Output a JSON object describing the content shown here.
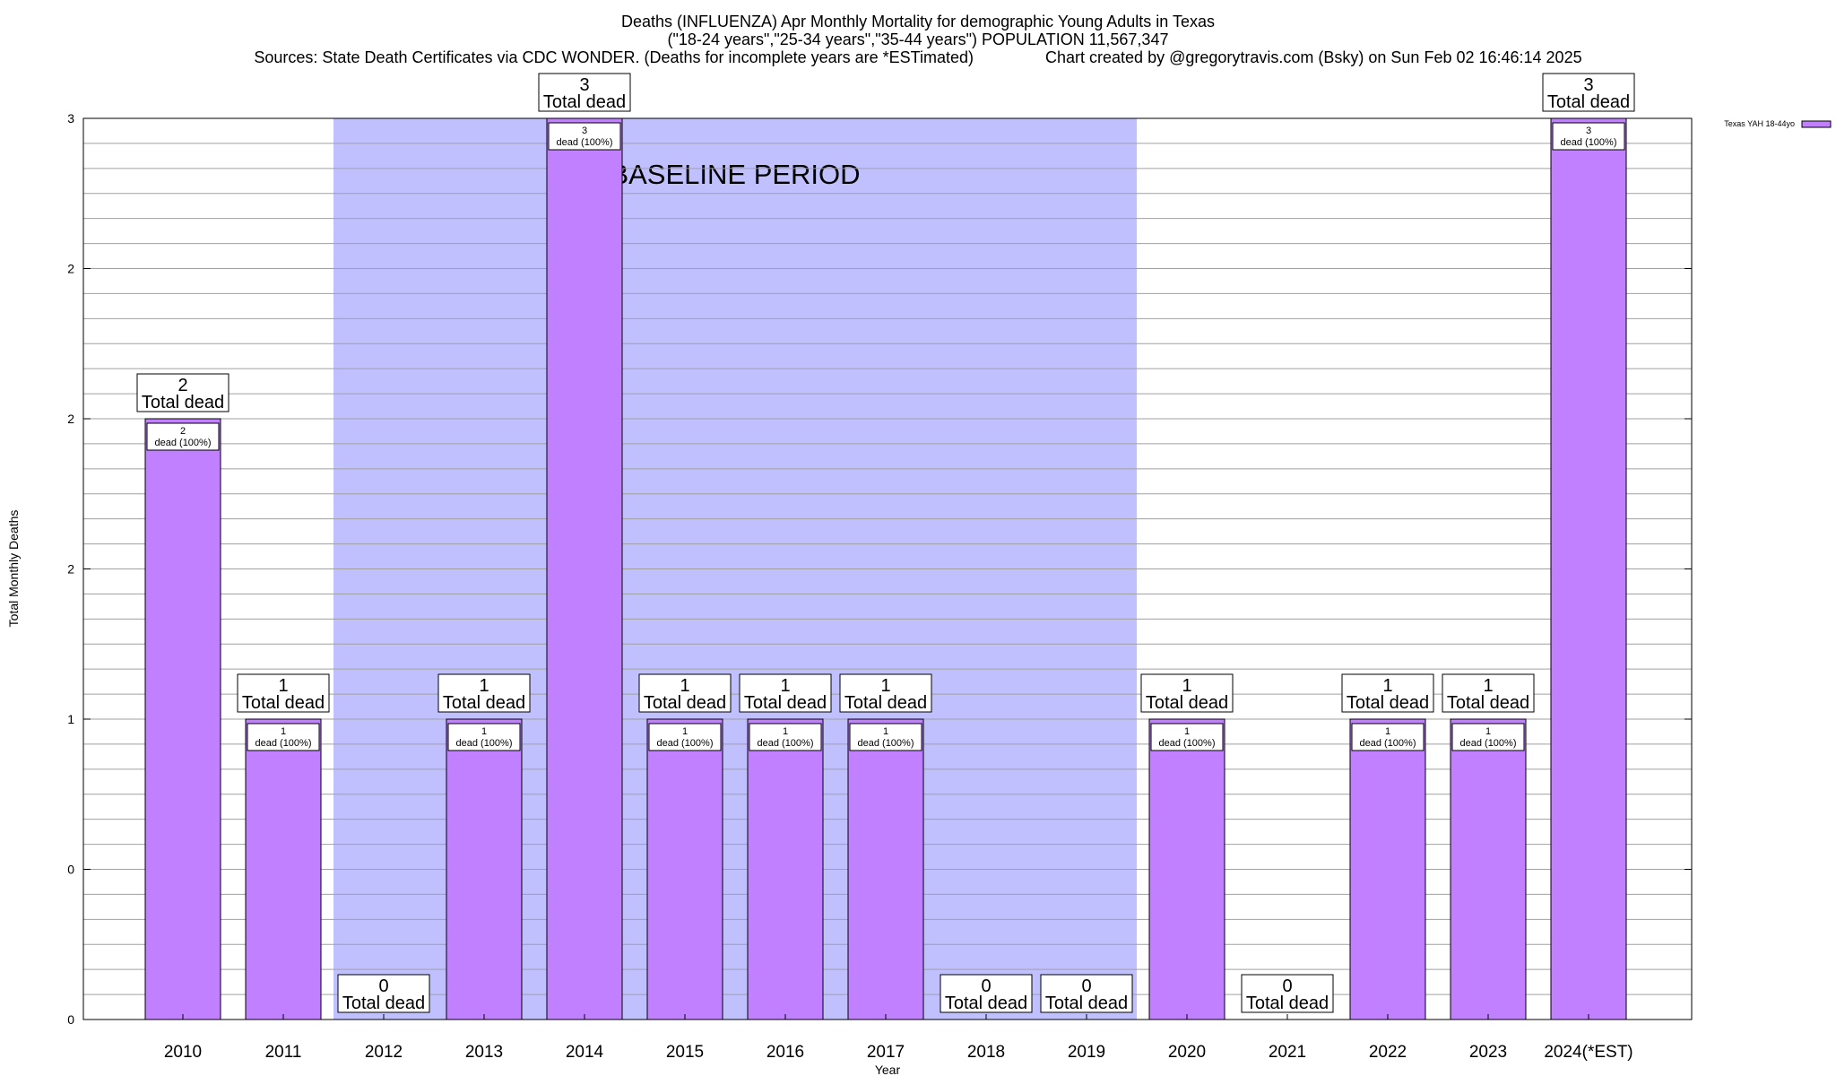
{
  "title_lines": [
    "Deaths (INFLUENZA) Apr Monthly Mortality for demographic Young Adults in Texas",
    "(\"18-24 years\",\"25-34 years\",\"35-44 years\") POPULATION 11,567,347",
    "Sources: State Death Certificates via CDC WONDER. (Deaths for incomplete years are *ESTimated)                Chart created by @gregorytravis.com (Bsky) on Sun Feb 02 16:46:14 2025"
  ],
  "colors": {
    "bar_fill": "#c080ff",
    "bar_stroke": "#000000",
    "baseline_fill": "#c0c0ff",
    "grid": "#a0a0a0"
  },
  "chart_data": {
    "type": "bar",
    "title": "Deaths (INFLUENZA) Apr Monthly Mortality for demographic Young Adults in Texas",
    "xlabel": "Year",
    "ylabel": "Total Monthly Deaths",
    "ylim": [
      0,
      3
    ],
    "yticks": [
      0,
      0.5,
      1,
      1.5,
      2,
      2.5,
      3
    ],
    "ytick_labels": [
      "0",
      "0",
      "1",
      "2",
      "2",
      "2",
      "3"
    ],
    "grid": true,
    "categories": [
      "2010",
      "2011",
      "2012",
      "2013",
      "2014",
      "2015",
      "2016",
      "2017",
      "2018",
      "2019",
      "2020",
      "2021",
      "2022",
      "2023",
      "2024(*EST)"
    ],
    "series": [
      {
        "name": "Texas YAH 18-44yo",
        "values": [
          2,
          1,
          0,
          1,
          3,
          1,
          1,
          1,
          0,
          0,
          1,
          0,
          1,
          1,
          3
        ]
      }
    ],
    "total_label_text": "Total dead",
    "bar_label_suffix": "dead (100%)",
    "baseline_period": {
      "label": "BASELINE PERIOD",
      "from": "2012",
      "to": "2019"
    },
    "legend": {
      "position": "top-right",
      "label": "Texas YAH 18-44yo"
    }
  }
}
